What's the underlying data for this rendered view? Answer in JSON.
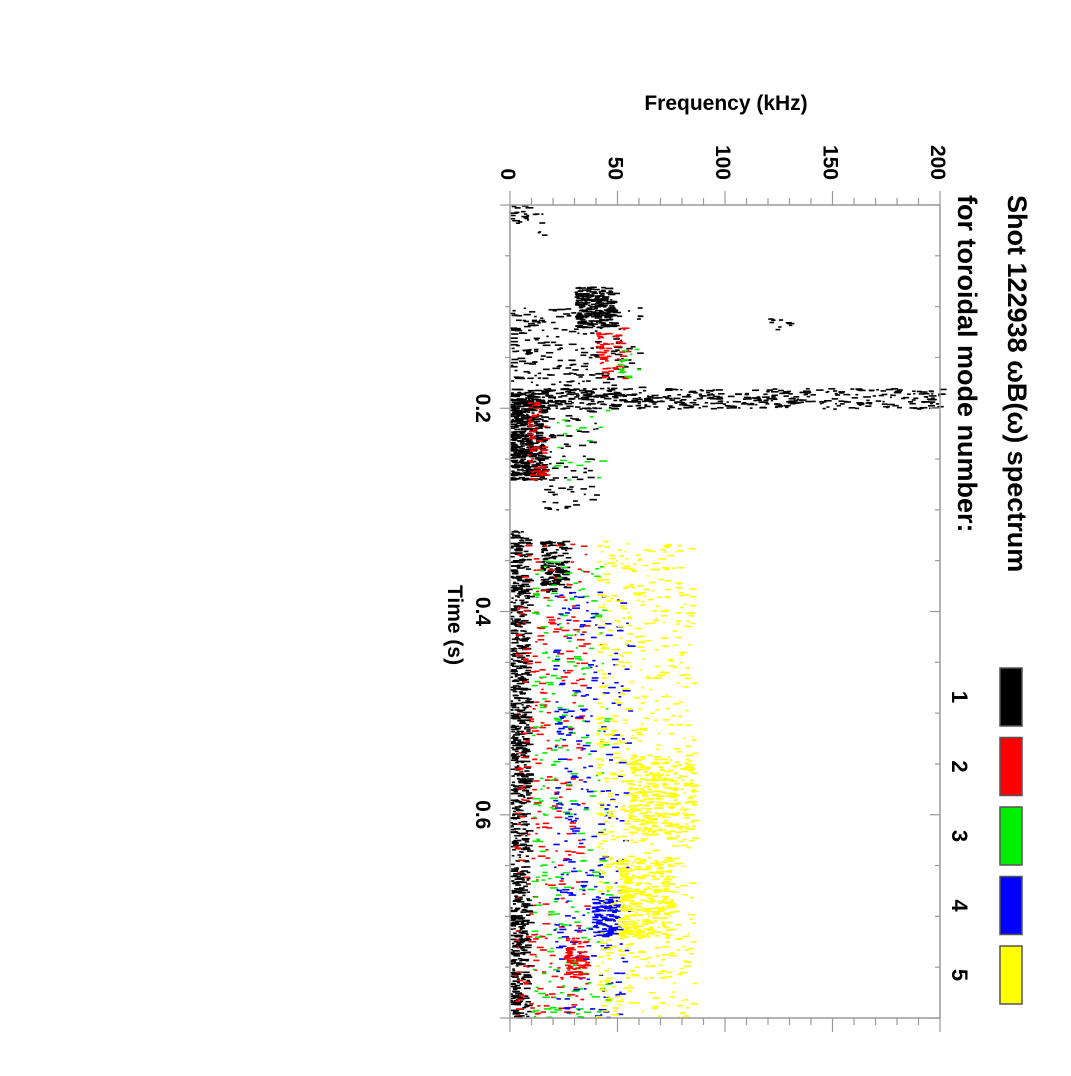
{
  "chart_data": {
    "type": "scatter",
    "orientation": "rotated-90-clockwise",
    "title": "Shot 122938 ωB(ω) spectrum",
    "subtitle": "for toroidal mode number:",
    "xlabel": "Time (s)",
    "ylabel": "Frequency (kHz)",
    "xlim": [
      0,
      0.8
    ],
    "ylim": [
      0,
      200
    ],
    "x_ticks": [
      "0.2",
      "0.4",
      "0.6"
    ],
    "y_ticks": [
      "0",
      "50",
      "100",
      "150",
      "200"
    ],
    "legend": [
      {
        "label": "1",
        "color": "#000000"
      },
      {
        "label": "2",
        "color": "#ff0000"
      },
      {
        "label": "3",
        "color": "#00ee00"
      },
      {
        "label": "4",
        "color": "#0000ff"
      },
      {
        "label": "5",
        "color": "#ffff00"
      }
    ],
    "legend_placement": "right",
    "clusters": [
      {
        "mode": 1,
        "t": [
          0.0,
          0.03
        ],
        "f": [
          0,
          15
        ],
        "n": 25
      },
      {
        "mode": 1,
        "t": [
          0.08,
          0.12
        ],
        "f": [
          30,
          48
        ],
        "n": 260
      },
      {
        "mode": 1,
        "t": [
          0.1,
          0.19
        ],
        "f": [
          0,
          60
        ],
        "n": 260
      },
      {
        "mode": 1,
        "t": [
          0.11,
          0.13
        ],
        "f": [
          120,
          135
        ],
        "n": 10
      },
      {
        "mode": 2,
        "t": [
          0.12,
          0.17
        ],
        "f": [
          40,
          55
        ],
        "n": 60
      },
      {
        "mode": 3,
        "t": [
          0.14,
          0.17
        ],
        "f": [
          50,
          60
        ],
        "n": 15
      },
      {
        "mode": 1,
        "t": [
          0.18,
          0.2
        ],
        "f": [
          0,
          200
        ],
        "n": 500
      },
      {
        "mode": 1,
        "t": [
          0.19,
          0.27
        ],
        "f": [
          0,
          15
        ],
        "n": 500
      },
      {
        "mode": 1,
        "t": [
          0.19,
          0.3
        ],
        "f": [
          15,
          40
        ],
        "n": 80
      },
      {
        "mode": 2,
        "t": [
          0.19,
          0.27
        ],
        "f": [
          8,
          16
        ],
        "n": 60
      },
      {
        "mode": 3,
        "t": [
          0.2,
          0.27
        ],
        "f": [
          20,
          45
        ],
        "n": 20
      },
      {
        "mode": 1,
        "t": [
          0.33,
          0.38
        ],
        "f": [
          14,
          26
        ],
        "n": 150
      },
      {
        "mode": 1,
        "t": [
          0.32,
          0.8
        ],
        "f": [
          0,
          8
        ],
        "n": 900
      },
      {
        "mode": 2,
        "t": [
          0.33,
          0.8
        ],
        "f": [
          2,
          35
        ],
        "n": 300
      },
      {
        "mode": 3,
        "t": [
          0.35,
          0.8
        ],
        "f": [
          10,
          45
        ],
        "n": 250
      },
      {
        "mode": 4,
        "t": [
          0.38,
          0.8
        ],
        "f": [
          20,
          55
        ],
        "n": 300
      },
      {
        "mode": 5,
        "t": [
          0.33,
          0.8
        ],
        "f": [
          40,
          85
        ],
        "n": 700
      },
      {
        "mode": 2,
        "t": [
          0.72,
          0.76
        ],
        "f": [
          25,
          35
        ],
        "n": 80
      },
      {
        "mode": 4,
        "t": [
          0.68,
          0.72
        ],
        "f": [
          38,
          50
        ],
        "n": 100
      },
      {
        "mode": 5,
        "t": [
          0.64,
          0.72
        ],
        "f": [
          50,
          75
        ],
        "n": 300
      },
      {
        "mode": 5,
        "t": [
          0.54,
          0.62
        ],
        "f": [
          55,
          85
        ],
        "n": 300
      }
    ]
  }
}
